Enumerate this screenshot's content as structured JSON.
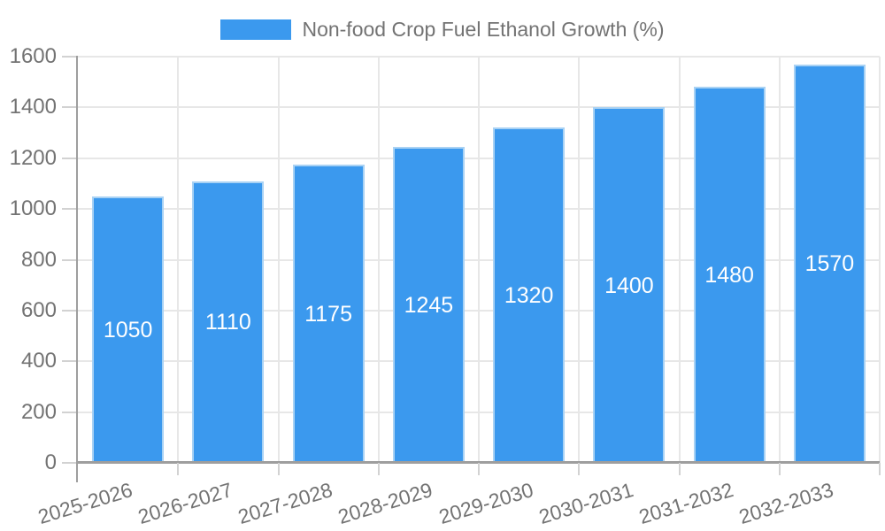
{
  "legend": {
    "label": "Non-food Crop Fuel Ethanol Growth (%)"
  },
  "chart_data": {
    "type": "bar",
    "title": "",
    "xlabel": "",
    "ylabel": "",
    "categories": [
      "2025-2026",
      "2026-2027",
      "2027-2028",
      "2028-2029",
      "2029-2030",
      "2030-2031",
      "2031-2032",
      "2032-2033"
    ],
    "values": [
      1050,
      1110,
      1175,
      1245,
      1320,
      1400,
      1480,
      1570
    ],
    "value_labels": [
      "1050",
      "1110",
      "1175",
      "1245",
      "1320",
      "1400",
      "1480",
      "1570"
    ],
    "series_name": "Non-food Crop Fuel Ethanol Growth (%)",
    "ylim": [
      0,
      1600
    ],
    "ytick_step": 200,
    "yticks": [
      "0",
      "200",
      "400",
      "600",
      "800",
      "1000",
      "1200",
      "1400",
      "1600"
    ],
    "grid": true,
    "legend_position": "top-center",
    "value_label_position": "inside-center",
    "colors": {
      "bar_fill": "#3b99ee",
      "bar_border": "#a9d2f4",
      "value_label_text": "#ffffff",
      "axis_line": "#9e9e9e",
      "grid_line": "#e7e7e7",
      "tick_mark": "#d2d2d2",
      "axis_text": "#737373"
    }
  }
}
